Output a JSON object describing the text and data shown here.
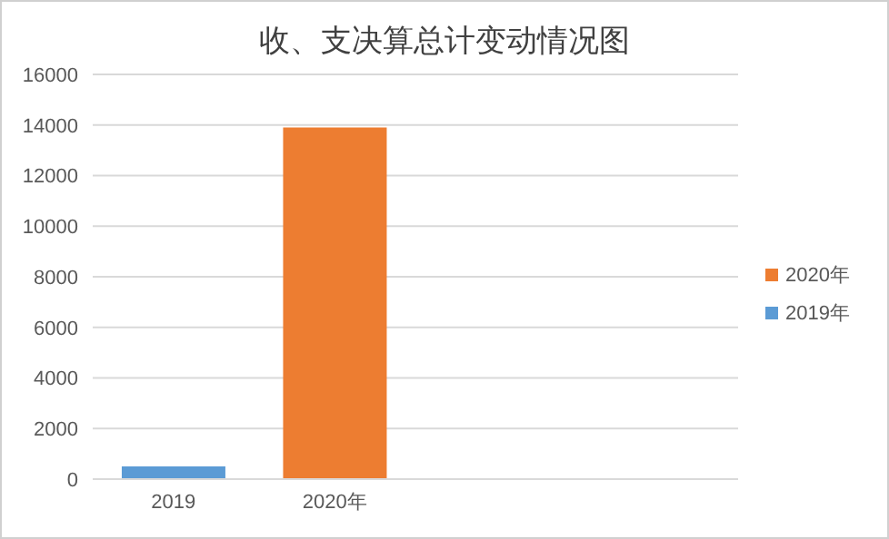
{
  "chart_data": {
    "type": "bar",
    "title": "收、支决算总计变动情况图",
    "stacked": true,
    "categories": [
      "2019",
      "2020年",
      null,
      null
    ],
    "series": [
      {
        "name": "2019年",
        "color": "#5b9bd5",
        "values": [
          500,
          null,
          null,
          null
        ]
      },
      {
        "name": "2020年",
        "color": "#ed7d31",
        "values": [
          null,
          13900,
          null,
          null
        ]
      }
    ],
    "ylim": [
      0,
      16000
    ],
    "yticks": [
      0,
      2000,
      4000,
      6000,
      8000,
      10000,
      12000,
      14000,
      16000
    ],
    "grid": "y",
    "legend": "right"
  }
}
